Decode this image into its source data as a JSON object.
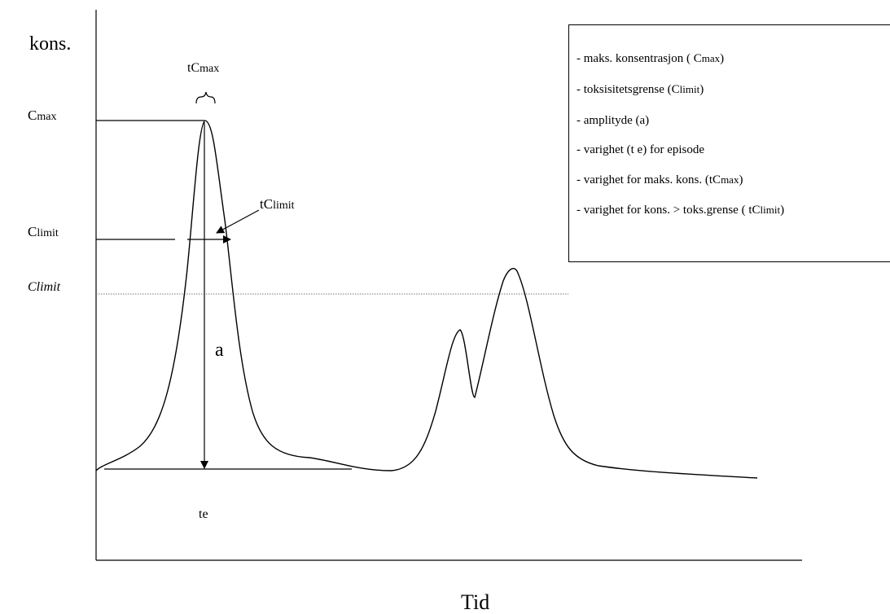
{
  "y_axis_label": "kons.",
  "x_axis_label": "Tid",
  "levels": {
    "cmax": {
      "main": "C",
      "sub": "max"
    },
    "clim": {
      "main": "C",
      "sub": "limit"
    },
    "clim_dotted": "Climit"
  },
  "annotations": {
    "tcmax": {
      "main": "tC",
      "sub": "max"
    },
    "tclimit": {
      "main": "tC",
      "sub": "limit"
    },
    "amplitude": "a",
    "duration": "te"
  },
  "legend": {
    "items": [
      {
        "text": "- maks. konsentrasjon ( ",
        "sym": "C",
        "sub": "max",
        "tail": ")"
      },
      {
        "text": "- toksisitetsgrense  (",
        "sym": "C",
        "sub": "limit",
        "tail": ")"
      },
      {
        "text": "- amplityde  (a)",
        "sym": "",
        "sub": "",
        "tail": ""
      },
      {
        "text": "- varighet (t e) for episode",
        "sym": "",
        "sub": "",
        "tail": ""
      },
      {
        "text": "- varighet for  maks. kons. (tC",
        "sym": "",
        "sub": "max",
        "tail": ")"
      },
      {
        "text": "- varighet for  kons. > toks.grense ( tC",
        "sym": "",
        "sub": "limit",
        "tail": ")"
      }
    ]
  }
}
